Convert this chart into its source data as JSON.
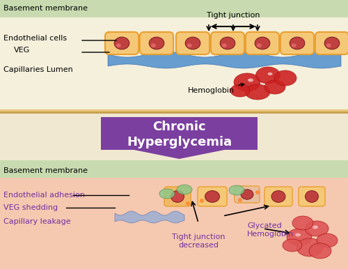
{
  "fig_width": 5.0,
  "fig_height": 3.86,
  "dpi": 100,
  "top_panel_bg_top": "#c8dbb0",
  "top_panel_bg_bottom": "#f5f0dc",
  "middle_panel_bg": "#f0e8d0",
  "bottom_panel_bg_top": "#c8dbb0",
  "bottom_panel_bg_bottom": "#f5c8b0",
  "arrow_color": "#7B3FA0",
  "arrow_text": "Chronic\nHyperglycemia",
  "cell_fill": "#F5C878",
  "cell_nucleus": "#C04040",
  "cell_stroke": "#E8A030",
  "veg_color": "#4488CC",
  "top_labels": {
    "basement_membrane": "Basement membrane",
    "endothelial_cells": "Endothelial cells",
    "veg": "VEG",
    "capillaries_lumen": "Capillaries Lumen",
    "hemoglobin": "Hemoglobin",
    "tight_junction": "Tight junction"
  },
  "bottom_labels": {
    "basement_membrane": "Basement membrane",
    "endothelial_adhesion": "Endothelial adhesion",
    "veg_shedding": "VEG shedding",
    "capillary_leakage": "Capillary leakage",
    "tight_junction_decreased": "Tight junction\ndecreased",
    "glycated_hemoglobin": "Glycated\nHemoglobin"
  },
  "purple_text": "#7030A0",
  "black_text": "#000000",
  "separator_color1": "#E8C878",
  "separator_color2": "#C8A050",
  "separator_color3": "#A87830"
}
